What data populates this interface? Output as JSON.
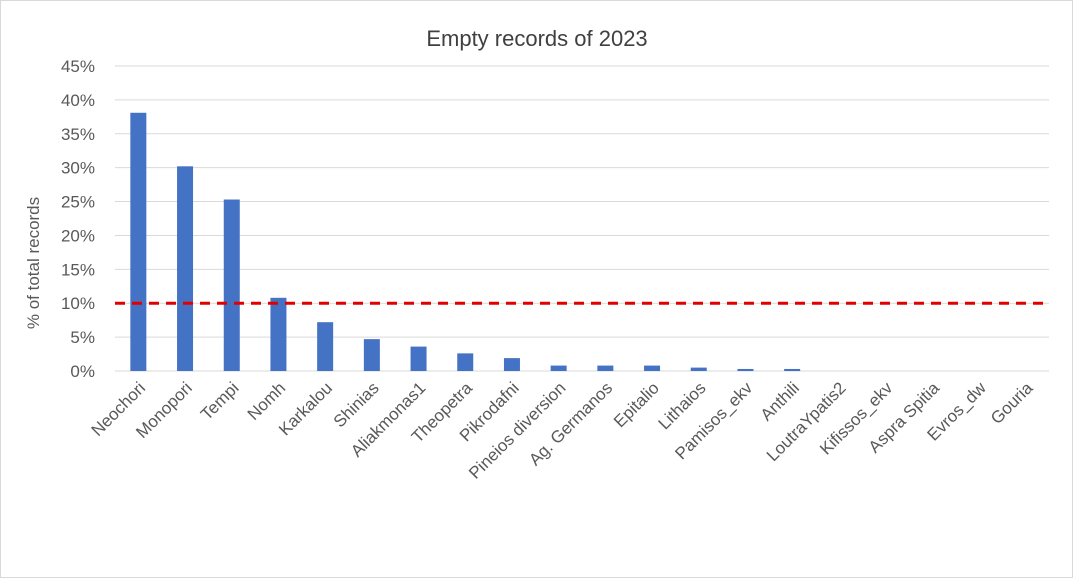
{
  "chart_data": {
    "type": "bar",
    "title": "Empty records of 2023",
    "xlabel": "",
    "ylabel": "% of total records",
    "ylim": [
      0,
      45
    ],
    "yticks": [
      "0%",
      "5%",
      "10%",
      "15%",
      "20%",
      "25%",
      "30%",
      "35%",
      "40%",
      "45%"
    ],
    "grid": true,
    "legend": "none",
    "bar_color": "#4472c4",
    "threshold": {
      "value": 10,
      "color": "#e00000",
      "style": "dashed"
    },
    "categories": [
      "Neochori",
      "Monopori",
      "Tempi",
      "Nomh",
      "Karkalou",
      "Shinias",
      "Aliakmonas1",
      "Theopetra",
      "Pikrodafni",
      "Pineios diversion",
      "Ag. Germanos",
      "Epitalio",
      "Lithaios",
      "Pamisos_ekv",
      "Anthili",
      "LoutraYpatis2",
      "Kifissos_ekv",
      "Aspra Spitia",
      "Evros_dw",
      "Gouria"
    ],
    "values": [
      38.1,
      30.2,
      25.3,
      10.8,
      7.2,
      4.7,
      3.6,
      2.6,
      1.9,
      0.8,
      0.8,
      0.8,
      0.5,
      0.3,
      0.3,
      0.0,
      0.0,
      0.0,
      0.0,
      0.0
    ]
  }
}
